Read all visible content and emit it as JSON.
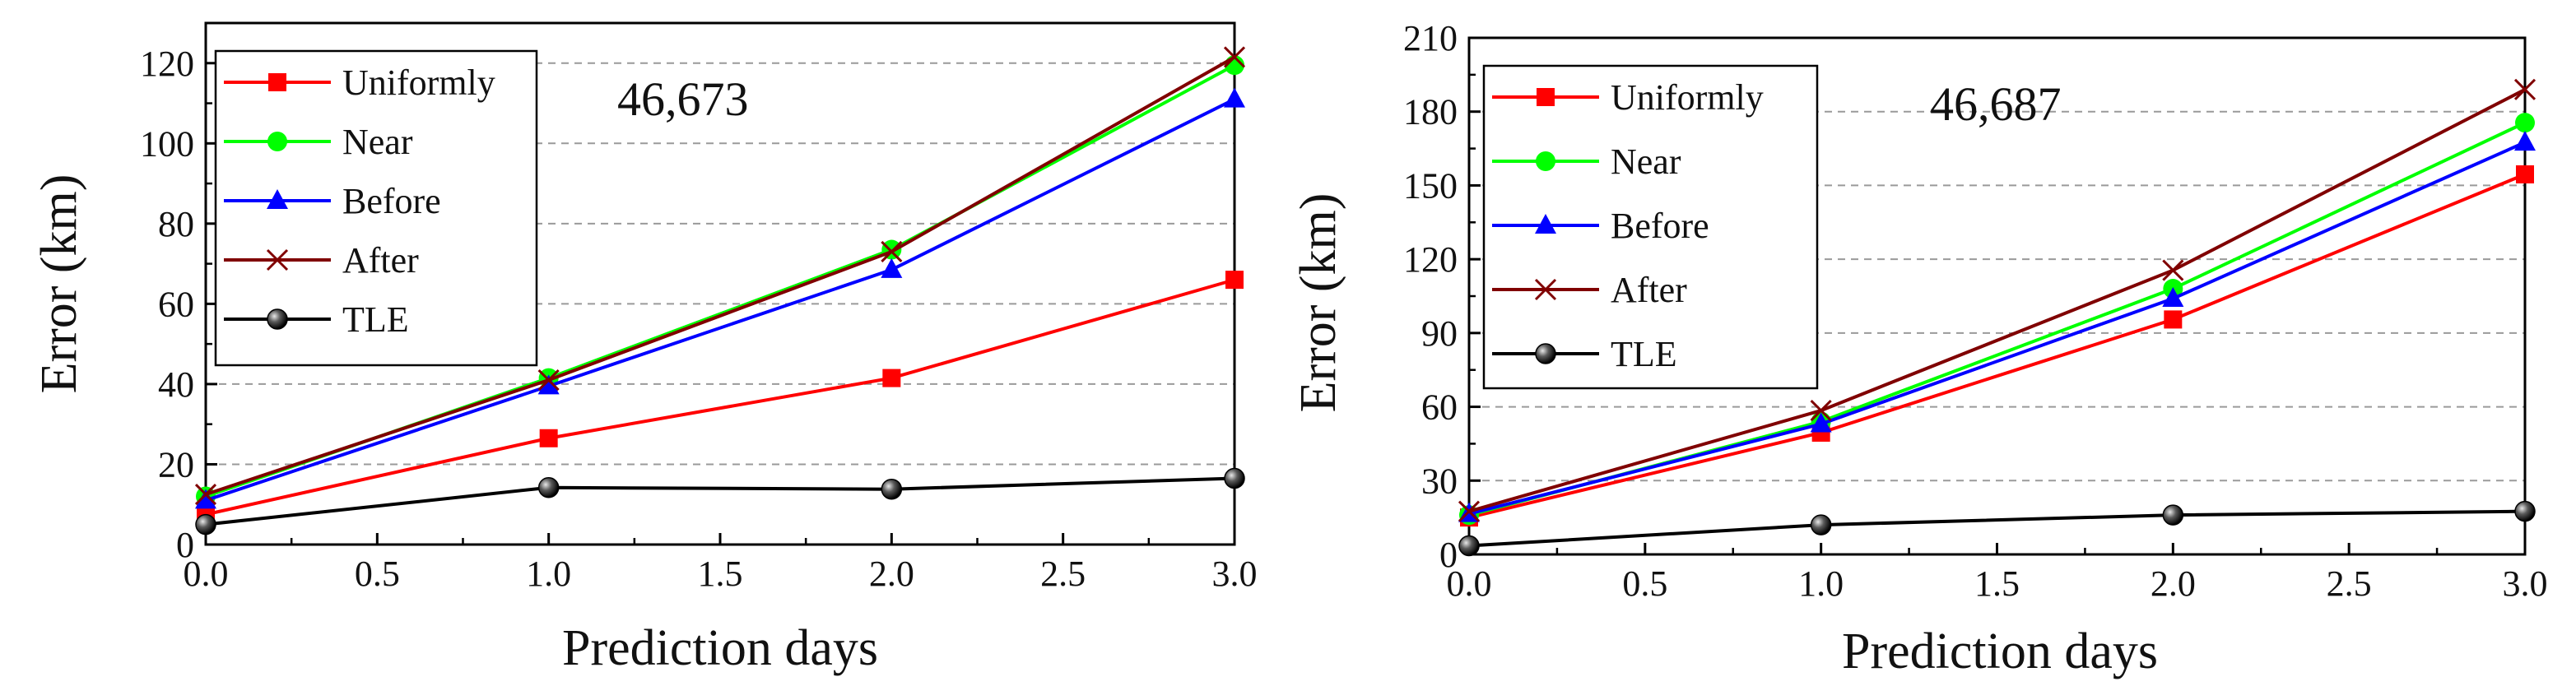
{
  "chart_data": [
    {
      "type": "line",
      "annotation": "46,673",
      "xlabel": "Prediction days",
      "ylabel": "Error (km)",
      "xlim": [
        0,
        3.0
      ],
      "ylim": [
        0,
        130
      ],
      "xticks": [
        0,
        0.5,
        1,
        1.5,
        2,
        2.5,
        3
      ],
      "xtick_labels": [
        "0.0",
        "0.5",
        "1.0",
        "1.5",
        "2.0",
        "2.5",
        "3.0"
      ],
      "yticks": [
        0,
        20,
        40,
        60,
        80,
        100,
        120
      ],
      "ytick_labels": [
        "0",
        "20",
        "40",
        "60",
        "80",
        "100",
        "120"
      ],
      "grid": "horizontal-dashed",
      "legend_position": "top-left",
      "x": [
        0,
        1,
        2,
        3
      ],
      "series": [
        {
          "name": "Uniformly",
          "color": "#ff0000",
          "marker": "square",
          "values": [
            7.5,
            26.5,
            41.5,
            66
          ]
        },
        {
          "name": "Near",
          "color": "#00ff00",
          "marker": "circle",
          "values": [
            12,
            41.5,
            73.5,
            119.5
          ]
        },
        {
          "name": "Before",
          "color": "#0000ff",
          "marker": "triangle",
          "values": [
            11,
            39.5,
            68.5,
            111
          ]
        },
        {
          "name": "After",
          "color": "#800000",
          "marker": "x",
          "values": [
            12.5,
            41,
            73,
            121.5
          ]
        },
        {
          "name": "TLE",
          "color": "#000000",
          "marker": "ball",
          "values": [
            5,
            14.2,
            13.8,
            16.5
          ]
        }
      ]
    },
    {
      "type": "line",
      "annotation": "46,687",
      "xlabel": "Prediction days",
      "ylabel": "Error (km)",
      "xlim": [
        0,
        3.0
      ],
      "ylim": [
        0,
        210
      ],
      "xticks": [
        0,
        0.5,
        1,
        1.5,
        2,
        2.5,
        3
      ],
      "xtick_labels": [
        "0.0",
        "0.5",
        "1.0",
        "1.5",
        "2.0",
        "2.5",
        "3.0"
      ],
      "yticks": [
        0,
        30,
        60,
        90,
        120,
        150,
        180,
        210
      ],
      "ytick_labels": [
        "0",
        "30",
        "60",
        "90",
        "120",
        "150",
        "180",
        "210"
      ],
      "grid": "horizontal-dashed",
      "legend_position": "top-left",
      "x": [
        0,
        1,
        2,
        3
      ],
      "series": [
        {
          "name": "Uniformly",
          "color": "#ff0000",
          "marker": "square",
          "values": [
            15,
            49.5,
            95.5,
            154.5
          ]
        },
        {
          "name": "Near",
          "color": "#00ff00",
          "marker": "circle",
          "values": [
            16,
            54,
            108,
            175.5
          ]
        },
        {
          "name": "Before",
          "color": "#0000ff",
          "marker": "triangle",
          "values": [
            16.5,
            53,
            104,
            167.5
          ]
        },
        {
          "name": "After",
          "color": "#800000",
          "marker": "x",
          "values": [
            17.5,
            58.5,
            115.5,
            189
          ]
        },
        {
          "name": "TLE",
          "color": "#000000",
          "marker": "ball",
          "values": [
            3.5,
            12,
            16,
            17.5
          ]
        }
      ]
    }
  ]
}
